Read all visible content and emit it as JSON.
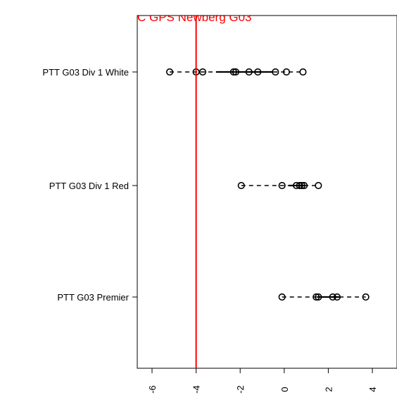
{
  "chart_data": {
    "type": "scatter",
    "title": "C GPS Newberg G03",
    "title_color": "#ff0000",
    "reference_line": {
      "x": -4,
      "color": "#ff0000"
    },
    "xlim": [
      -6.5,
      5
    ],
    "x_ticks": [
      "-6",
      "-4",
      "-2",
      "0",
      "2",
      "4"
    ],
    "x_tick_values": [
      -6,
      -4,
      -2,
      0,
      2,
      4
    ],
    "marker": "open-circle",
    "series": [
      {
        "name": "PTT G03 Div 1 White",
        "values": [
          -5.2,
          -4.0,
          -3.7,
          -2.3,
          -2.2,
          -1.6,
          -1.2,
          -0.4,
          0.1,
          0.85
        ],
        "range_low": -5.2,
        "iqr": [
          -3.1,
          -0.5
        ],
        "range_high": 0.85
      },
      {
        "name": "PTT G03 Div 1 Red",
        "values": [
          -1.95,
          -0.1,
          0.55,
          0.7,
          0.8,
          0.9,
          1.55
        ],
        "range_low": -1.95,
        "iqr": [
          0.2,
          0.9
        ],
        "range_high": 1.55
      },
      {
        "name": "PTT G03 Premier",
        "values": [
          -0.1,
          1.45,
          1.55,
          2.2,
          2.4,
          3.7
        ],
        "range_low": -0.1,
        "iqr": [
          1.5,
          2.5
        ],
        "range_high": 3.7
      }
    ],
    "grid": false,
    "legend": "none"
  }
}
